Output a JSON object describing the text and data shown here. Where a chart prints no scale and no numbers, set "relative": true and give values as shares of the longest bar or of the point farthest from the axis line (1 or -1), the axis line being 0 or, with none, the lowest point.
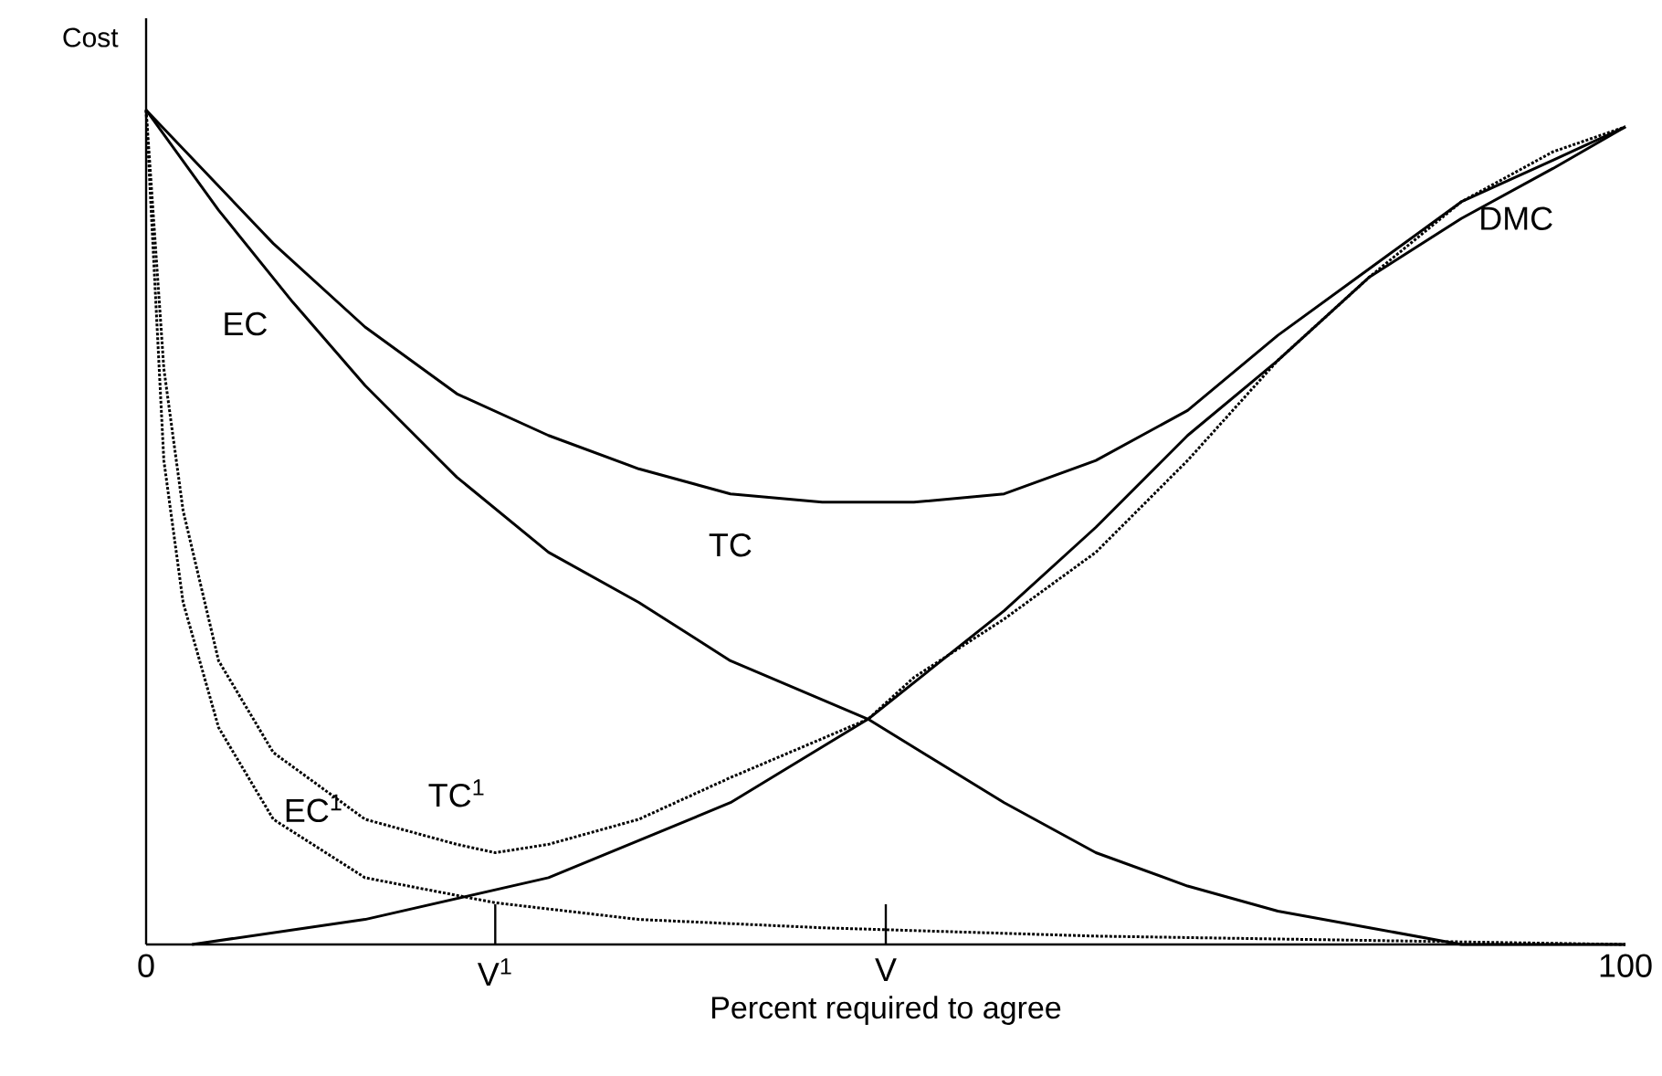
{
  "chart_data": {
    "type": "line",
    "relative": true,
    "xlabel": "Percent required to agree",
    "ylabel": "Cost",
    "xlim": [
      0,
      100
    ],
    "xticks": [
      0,
      100
    ],
    "ref_lines": [
      {
        "axis": "x",
        "value": 23.6,
        "label": "V$^{1}$"
      },
      {
        "axis": "x",
        "value": 50,
        "label": "V"
      }
    ],
    "marker": "none",
    "series": [
      {
        "name": "EC",
        "color": "#000000",
        "line_style": "solid",
        "x": [
          0,
          4.9,
          9.9,
          14.8,
          21.0,
          27.2,
          33.3,
          39.5,
          48.8,
          58.0,
          64.2,
          70.4,
          76.5,
          82.7,
          88.9,
          100
        ],
        "values": [
          1.0,
          0.88,
          0.77,
          0.67,
          0.56,
          0.47,
          0.41,
          0.34,
          0.27,
          0.17,
          0.11,
          0.07,
          0.04,
          0.02,
          0.0,
          0
        ]
      },
      {
        "name": "DMC",
        "color": "#000000",
        "line_style": "solid",
        "x": [
          3.1,
          14.8,
          27.2,
          39.5,
          48.8,
          58.0,
          64.2,
          70.4,
          76.5,
          82.7,
          88.9,
          95.1,
          100
        ],
        "values": [
          0,
          0.03,
          0.08,
          0.17,
          0.27,
          0.4,
          0.5,
          0.61,
          0.7,
          0.8,
          0.87,
          0.93,
          0.98
        ]
      },
      {
        "name": "TC",
        "color": "#000000",
        "line_style": "solid",
        "x": [
          0,
          8.6,
          14.8,
          21.0,
          27.2,
          33.3,
          39.5,
          45.7,
          51.9,
          58.0,
          64.2,
          70.4,
          76.5,
          82.7,
          88.9,
          95.1,
          100
        ],
        "values": [
          1.0,
          0.84,
          0.74,
          0.66,
          0.61,
          0.57,
          0.54,
          0.53,
          0.53,
          0.54,
          0.58,
          0.64,
          0.73,
          0.81,
          0.89,
          0.94,
          0.98
        ]
      },
      {
        "name": "TC$^{1}$",
        "color": "#000000",
        "line_style": "dotted",
        "x": [
          0,
          1.2,
          2.5,
          4.9,
          8.6,
          14.8,
          21.0,
          23.6,
          27.2,
          33.3,
          39.5,
          48.8,
          51.9,
          58.0,
          64.2,
          70.4,
          76.5,
          82.7,
          88.9,
          95.1,
          100
        ],
        "values": [
          1.0,
          0.69,
          0.52,
          0.34,
          0.23,
          0.15,
          0.12,
          0.11,
          0.12,
          0.15,
          0.2,
          0.27,
          0.32,
          0.39,
          0.47,
          0.58,
          0.7,
          0.8,
          0.89,
          0.95,
          0.98
        ]
      },
      {
        "name": "EC$^{1}$",
        "color": "#000000",
        "line_style": "dotted",
        "x": [
          0,
          1.2,
          2.5,
          4.9,
          8.6,
          14.8,
          23.6,
          33.3,
          45.7,
          64.2,
          100
        ],
        "values": [
          1.0,
          0.58,
          0.41,
          0.26,
          0.15,
          0.08,
          0.05,
          0.03,
          0.02,
          0.01,
          0
        ]
      }
    ]
  }
}
